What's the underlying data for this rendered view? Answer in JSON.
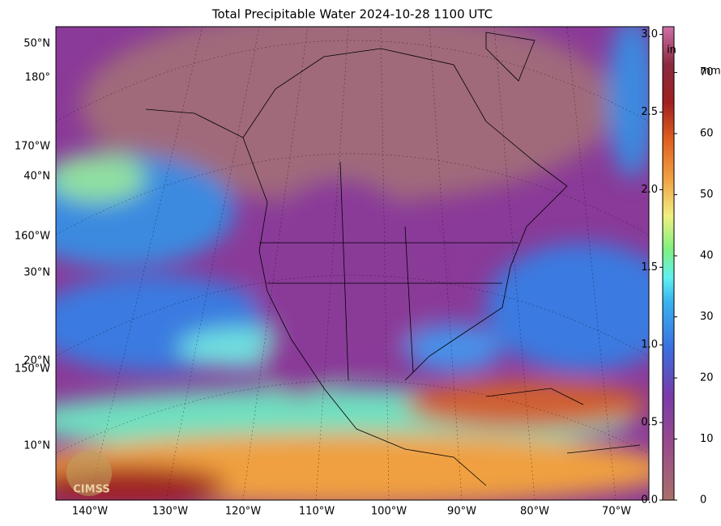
{
  "title": "Total Precipitable Water  2024-10-28 1100 UTC",
  "lat_lon_labels_left": [
    "50°N",
    "180°",
    "170°W",
    "40°N",
    "160°W",
    "30°N",
    "20°N",
    "150°W",
    "10°N"
  ],
  "lon_labels_bottom": [
    "140°W",
    "130°W",
    "120°W",
    "110°W",
    "100°W",
    "90°W",
    "80°W",
    "70°W"
  ],
  "logo": "CIMSS",
  "colorbar": {
    "in_unit": "in",
    "mm_unit": "mm",
    "in_lim": [
      0,
      3.05
    ],
    "mm_lim": [
      0,
      77.5
    ],
    "in_ticks": [
      {
        "value": 0,
        "label": "0.0"
      },
      {
        "value": 0.5,
        "label": "0.5"
      },
      {
        "value": 1,
        "label": "1.0"
      },
      {
        "value": 1.5,
        "label": "1.5"
      },
      {
        "value": 2,
        "label": "2.0"
      },
      {
        "value": 2.5,
        "label": "2.5"
      },
      {
        "value": 3,
        "label": "3.0"
      }
    ],
    "mm_ticks": [
      0,
      10,
      20,
      30,
      40,
      50,
      60,
      70
    ]
  }
}
